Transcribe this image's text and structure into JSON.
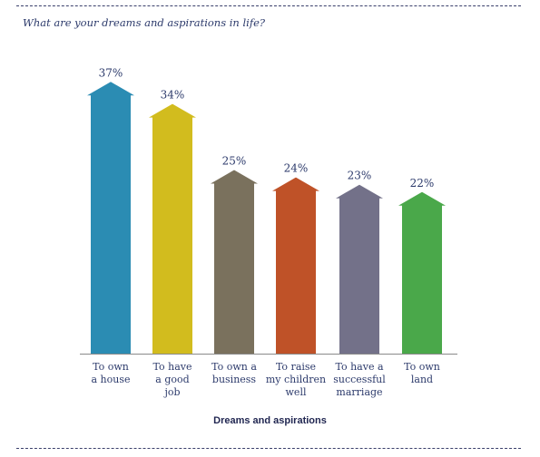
{
  "page": {
    "title": "What are your dreams and aspirations in life?"
  },
  "chart_data": {
    "type": "bar",
    "title": "What are your dreams and aspirations in life?",
    "xlabel": "Dreams and aspirations",
    "ylabel": "",
    "unit": "%",
    "ylim": [
      0,
      40
    ],
    "grid": false,
    "categories": [
      "To own\na house",
      "To have\na good\njob",
      "To own a\nbusiness",
      "To raise\nmy children\nwell",
      "To have a\nsuccessful\nmarriage",
      "To own\nland"
    ],
    "values": [
      37,
      34,
      25,
      24,
      23,
      22
    ],
    "value_labels": [
      "37%",
      "34%",
      "25%",
      "24%",
      "23%",
      "22%"
    ],
    "colors": [
      "#2B8CB3",
      "#D2BC1E",
      "#7A715D",
      "#BF5228",
      "#737189",
      "#4AA84A"
    ]
  }
}
